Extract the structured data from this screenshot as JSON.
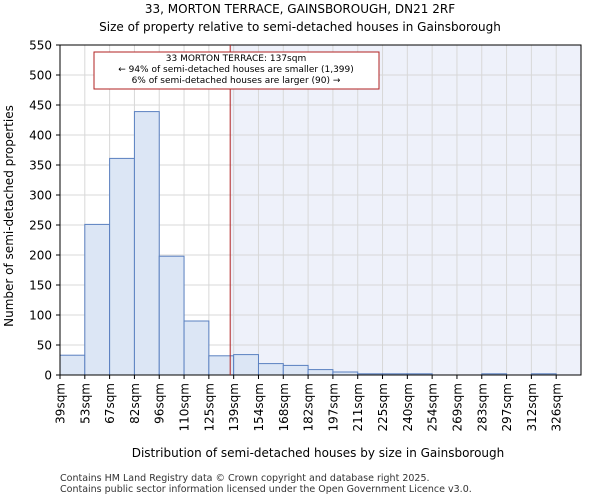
{
  "chart_data": {
    "type": "bar",
    "title": "33, MORTON TERRACE, GAINSBOROUGH, DN21 2RF",
    "subtitle": "Size of property relative to semi-detached houses in Gainsborough",
    "xlabel": "Distribution of semi-detached houses by size in Gainsborough",
    "ylabel": "Number of semi-detached properties",
    "categories": [
      "39sqm",
      "53sqm",
      "67sqm",
      "82sqm",
      "96sqm",
      "110sqm",
      "125sqm",
      "139sqm",
      "154sqm",
      "168sqm",
      "182sqm",
      "197sqm",
      "211sqm",
      "225sqm",
      "240sqm",
      "254sqm",
      "269sqm",
      "283sqm",
      "297sqm",
      "312sqm",
      "326sqm"
    ],
    "values": [
      33,
      251,
      361,
      439,
      198,
      90,
      32,
      34,
      19,
      16,
      9,
      5,
      2,
      2,
      2,
      0,
      0,
      2,
      0,
      2,
      0
    ],
    "ylim": [
      0,
      550
    ],
    "yticks": [
      0,
      50,
      100,
      150,
      200,
      250,
      300,
      350,
      400,
      450,
      500,
      550
    ],
    "marker_value": 137,
    "marker_bin_index": 6.86,
    "annotation": {
      "line1": "33 MORTON TERRACE: 137sqm",
      "line2": "← 94% of semi-detached houses are smaller (1,399)",
      "line3": "6% of semi-detached houses are larger (90) →"
    },
    "colors": {
      "bar_fill": "#dce6f5",
      "bar_stroke": "#5a80c0",
      "marker": "#b22222",
      "shade": "#eef1fa"
    }
  },
  "footer": {
    "line1": "Contains HM Land Registry data © Crown copyright and database right 2025.",
    "line2": "Contains public sector information licensed under the Open Government Licence v3.0."
  }
}
